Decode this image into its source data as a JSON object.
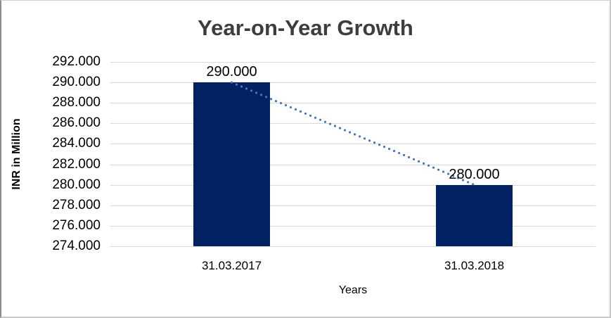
{
  "chart_data": {
    "type": "bar",
    "title": "Year-on-Year Growth",
    "xlabel": "Years",
    "ylabel": "INR in Million",
    "categories": [
      "31.03.2017",
      "31.03.2018"
    ],
    "values": [
      290000,
      280000
    ],
    "data_labels": [
      "290.000",
      "280.000"
    ],
    "ylim": [
      274000,
      292000
    ],
    "ytick_step": 2000,
    "ytick_labels": [
      "292.000",
      "290.000",
      "288.000",
      "286.000",
      "284.000",
      "282.000",
      "280.000",
      "278.000",
      "276.000",
      "274.000"
    ],
    "grid": true,
    "legend": false,
    "trendline": {
      "style": "dotted",
      "color": "#4577be"
    },
    "colors": {
      "bar": "#022264",
      "trendline": "#4577be",
      "gridline": "#d9d9d9",
      "axis_line": "#bfbfbf",
      "title_text": "#3d3d3d",
      "label_text": "#000000"
    }
  }
}
